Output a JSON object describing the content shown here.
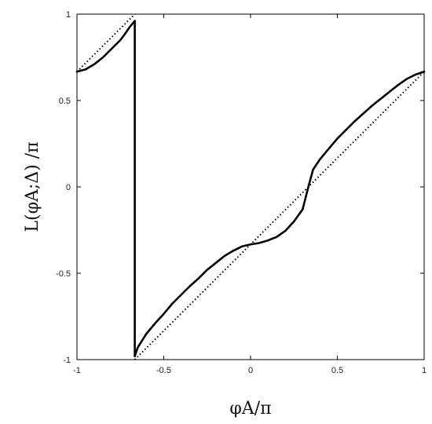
{
  "chart_data": {
    "type": "line",
    "title": "",
    "xlabel": "φA/π",
    "ylabel": "L(φA;Δ) /π",
    "xlim": [
      -1,
      1
    ],
    "ylim": [
      -1,
      1
    ],
    "xticks": [
      -1,
      -0.5,
      0,
      0.5,
      1
    ],
    "yticks": [
      -1,
      -0.5,
      0,
      0.5,
      1
    ],
    "xtick_labels": [
      "-1",
      "-0.5",
      "0",
      "0.5",
      "1"
    ],
    "ytick_labels": [
      "-1",
      "-0.5",
      "0",
      "0.5",
      "1"
    ],
    "grid": false,
    "legend": "none",
    "series": [
      {
        "style": "solid",
        "color": "#000000",
        "segments": [
          [
            [
              -1,
              0.667
            ],
            [
              -0.95,
              0.68
            ],
            [
              -0.9,
              0.71
            ],
            [
              -0.85,
              0.75
            ],
            [
              -0.8,
              0.8
            ],
            [
              -0.75,
              0.85
            ],
            [
              -0.72,
              0.89
            ],
            [
              -0.7,
              0.92
            ],
            [
              -0.68,
              0.945
            ],
            [
              -0.667,
              0.96
            ]
          ],
          [
            [
              -0.667,
              0.96
            ],
            [
              -0.667,
              -0.98
            ]
          ],
          [
            [
              -0.667,
              -0.98
            ],
            [
              -0.65,
              -0.93
            ],
            [
              -0.6,
              -0.85
            ],
            [
              -0.55,
              -0.79
            ],
            [
              -0.5,
              -0.735
            ],
            [
              -0.45,
              -0.675
            ],
            [
              -0.4,
              -0.625
            ],
            [
              -0.35,
              -0.575
            ],
            [
              -0.3,
              -0.53
            ],
            [
              -0.25,
              -0.48
            ],
            [
              -0.2,
              -0.44
            ],
            [
              -0.15,
              -0.4
            ],
            [
              -0.1,
              -0.37
            ],
            [
              -0.05,
              -0.345
            ],
            [
              0,
              -0.333
            ],
            [
              0.05,
              -0.325
            ],
            [
              0.1,
              -0.31
            ],
            [
              0.15,
              -0.29
            ],
            [
              0.2,
              -0.255
            ],
            [
              0.25,
              -0.2
            ],
            [
              0.3,
              -0.13
            ],
            [
              0.333,
              0
            ],
            [
              0.36,
              0.1
            ],
            [
              0.4,
              0.16
            ],
            [
              0.45,
              0.22
            ],
            [
              0.5,
              0.28
            ],
            [
              0.55,
              0.33
            ],
            [
              0.6,
              0.38
            ],
            [
              0.65,
              0.425
            ],
            [
              0.7,
              0.47
            ],
            [
              0.75,
              0.51
            ],
            [
              0.8,
              0.55
            ],
            [
              0.85,
              0.59
            ],
            [
              0.9,
              0.625
            ],
            [
              0.95,
              0.65
            ],
            [
              1,
              0.667
            ]
          ]
        ]
      },
      {
        "style": "dotted",
        "color": "#000000",
        "segments": [
          [
            [
              -1,
              0.667
            ],
            [
              -0.667,
              1
            ]
          ],
          [
            [
              -0.667,
              -1
            ],
            [
              1,
              0.667
            ]
          ]
        ]
      }
    ]
  }
}
